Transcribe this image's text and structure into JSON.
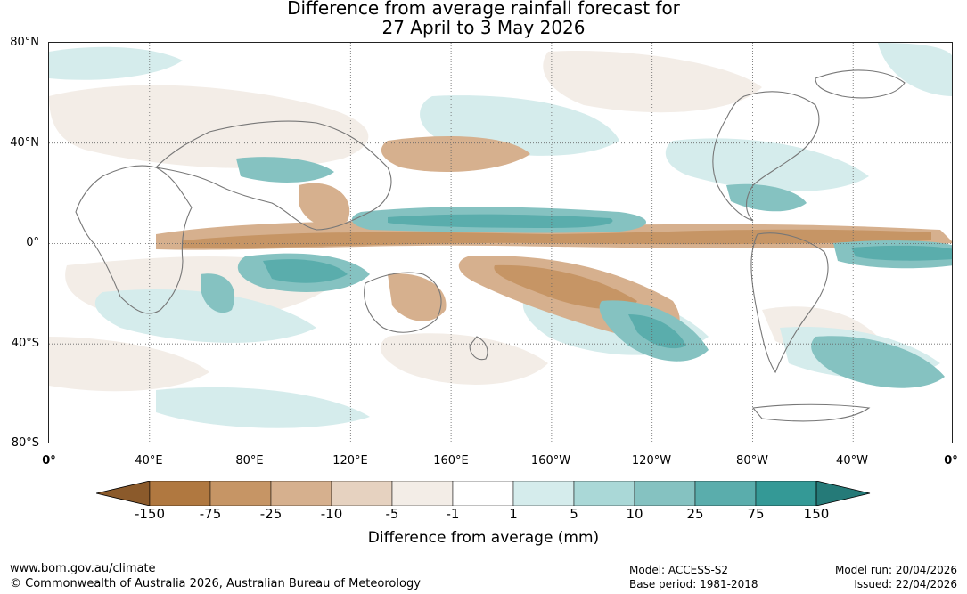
{
  "title_line1": "Difference from average rainfall forecast for",
  "title_line2": "27 April to 3 May 2026",
  "lat_labels": [
    "80°N",
    "40°N",
    "0°",
    "40°S",
    "80°S"
  ],
  "lon_labels": [
    "0°",
    "40°E",
    "80°E",
    "120°E",
    "160°E",
    "160°W",
    "120°W",
    "80°W",
    "40°W",
    "0°"
  ],
  "legend": {
    "title": "Difference from average (mm)",
    "ticks": [
      "-150",
      "-75",
      "-25",
      "-10",
      "-5",
      "-1",
      "1",
      "5",
      "10",
      "25",
      "75",
      "150"
    ],
    "colors": [
      "#8b5a2b",
      "#b07840",
      "#c69565",
      "#d6b08e",
      "#e6d2c0",
      "#f3ede7",
      "#ffffff",
      "#d5ecec",
      "#aad8d7",
      "#85c2c1",
      "#5aadac",
      "#349996",
      "#257a78"
    ]
  },
  "footer": {
    "url": "www.bom.gov.au/climate",
    "copyright": "© Commonwealth of Australia 2026, Australian Bureau of Meteorology",
    "model": "Model: ACCESS-S2",
    "base_period": "Base period: 1981-2018",
    "model_run": "Model run: 20/04/2026",
    "issued": "Issued: 22/04/2026"
  }
}
